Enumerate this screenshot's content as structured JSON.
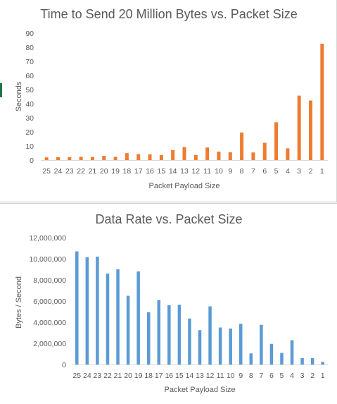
{
  "chart_data": [
    {
      "type": "bar",
      "title": "Time to Send 20 Million Bytes vs. Packet Size",
      "xlabel": "Packet Payload Size",
      "ylabel": "Seconds",
      "categories": [
        "25",
        "24",
        "23",
        "22",
        "21",
        "20",
        "19",
        "18",
        "17",
        "16",
        "15",
        "14",
        "13",
        "12",
        "11",
        "10",
        "9",
        "8",
        "7",
        "6",
        "5",
        "4",
        "3",
        "2",
        "1"
      ],
      "values": [
        1.9,
        2.0,
        2.0,
        2.3,
        2.2,
        3.0,
        2.3,
        4.9,
        4.2,
        4.0,
        3.5,
        7.0,
        9.2,
        3.6,
        8.9,
        6.0,
        5.5,
        19.5,
        5.4,
        12.2,
        26.8,
        8.3,
        45.7,
        42.2,
        82.5
      ],
      "ylim": [
        0,
        90
      ],
      "yticks": [
        "0",
        "10",
        "20",
        "30",
        "40",
        "50",
        "60",
        "70",
        "80",
        "90"
      ],
      "grid": false,
      "color": "#ed7d31"
    },
    {
      "type": "bar",
      "title": "Data Rate vs. Packet Size",
      "xlabel": "Packet Payload Size",
      "ylabel": "Bytes / Second",
      "categories": [
        "25",
        "24",
        "23",
        "22",
        "21",
        "20",
        "19",
        "18",
        "17",
        "16",
        "15",
        "14",
        "13",
        "12",
        "11",
        "10",
        "9",
        "8",
        "7",
        "6",
        "5",
        "4",
        "3",
        "2",
        "1"
      ],
      "values": [
        10700000,
        10150000,
        10200000,
        8600000,
        9000000,
        6500000,
        8800000,
        4950000,
        6100000,
        5600000,
        5650000,
        4350000,
        3250000,
        5500000,
        3500000,
        3400000,
        3850000,
        1050000,
        3750000,
        1950000,
        1100000,
        2300000,
        600000,
        600000,
        250000
      ],
      "ylim": [
        0,
        12000000
      ],
      "yticks": [
        "0",
        "2,000,000",
        "4,000,000",
        "6,000,000",
        "8,000,000",
        "10,000,000",
        "12,000,000"
      ],
      "grid": false,
      "color": "#5b9bd5"
    }
  ]
}
